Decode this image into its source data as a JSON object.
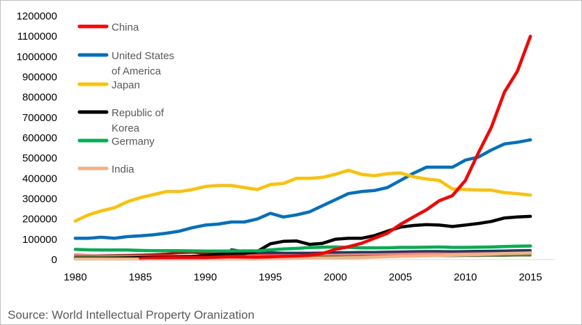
{
  "source": "Source: World Intellectual Property Oranization",
  "chart_data": {
    "type": "line",
    "title": "",
    "xlabel": "",
    "ylabel": "",
    "xlim": [
      1980,
      2015
    ],
    "ylim": [
      0,
      1200000
    ],
    "x": [
      1980,
      1981,
      1982,
      1983,
      1984,
      1985,
      1986,
      1987,
      1988,
      1989,
      1990,
      1991,
      1992,
      1993,
      1994,
      1995,
      1996,
      1997,
      1998,
      1999,
      2000,
      2001,
      2002,
      2003,
      2004,
      2005,
      2006,
      2007,
      2008,
      2009,
      2010,
      2011,
      2012,
      2013,
      2014,
      2015
    ],
    "x_ticks": [
      "1980",
      "1985",
      "1990",
      "1995",
      "2000",
      "2005",
      "2010",
      "2015"
    ],
    "x_tick_values": [
      1980,
      1985,
      1990,
      1995,
      2000,
      2005,
      2010,
      2015
    ],
    "y_ticks": [
      "0",
      "100000",
      "200000",
      "300000",
      "400000",
      "500000",
      "600000",
      "700000",
      "800000",
      "900000",
      "1000000",
      "1100000",
      "1200000"
    ],
    "y_tick_values": [
      0,
      100000,
      200000,
      300000,
      400000,
      500000,
      600000,
      700000,
      800000,
      900000,
      1000000,
      1100000,
      1200000
    ],
    "grid": false,
    "legend_position": "top-left",
    "legend": [
      {
        "lines": [
          "China"
        ],
        "color": "#ff0000"
      },
      {
        "lines": [
          "United States",
          "of America"
        ],
        "color": "#0070c0"
      },
      {
        "lines": [
          "Japan"
        ],
        "color": "#ffc000"
      },
      {
        "lines": [
          "Republic of",
          "Korea"
        ],
        "color": "#000000"
      },
      {
        "lines": [
          "Germany"
        ],
        "color": "#00b050"
      },
      {
        "lines": [
          "India"
        ],
        "color": "#f4b183"
      }
    ],
    "series": [
      {
        "name": "China",
        "color": "#ff0000",
        "values": [
          null,
          null,
          null,
          null,
          null,
          4000,
          8000,
          9000,
          10000,
          10000,
          10000,
          12000,
          14000,
          13000,
          12000,
          14000,
          16000,
          18000,
          21000,
          30000,
          50000,
          63000,
          80000,
          105000,
          130000,
          173000,
          210000,
          245000,
          290000,
          315000,
          390000,
          526000,
          652000,
          825000,
          928000,
          1100000
        ]
      },
      {
        "name": "United States of America",
        "color": "#0070c0",
        "values": [
          105000,
          105000,
          110000,
          105000,
          113000,
          117000,
          122000,
          130000,
          140000,
          157000,
          170000,
          175000,
          185000,
          185000,
          200000,
          228000,
          210000,
          220000,
          235000,
          265000,
          295000,
          325000,
          335000,
          340000,
          355000,
          390000,
          425000,
          455000,
          455000,
          455000,
          490000,
          505000,
          540000,
          570000,
          578000,
          590000
        ]
      },
      {
        "name": "Japan",
        "color": "#ffc000",
        "values": [
          190000,
          220000,
          240000,
          255000,
          285000,
          305000,
          320000,
          335000,
          335000,
          345000,
          360000,
          365000,
          365000,
          355000,
          345000,
          370000,
          375000,
          400000,
          400000,
          405000,
          420000,
          440000,
          420000,
          413000,
          423000,
          427000,
          408000,
          397000,
          390000,
          348000,
          345000,
          343000,
          342000,
          330000,
          325000,
          318000
        ]
      },
      {
        "name": "Republic of Korea",
        "color": "#000000",
        "values": [
          5000,
          5000,
          5000,
          6000,
          8000,
          10000,
          12000,
          13000,
          14000,
          15000,
          20000,
          25000,
          30000,
          30000,
          40000,
          78000,
          90000,
          92000,
          75000,
          80000,
          100000,
          105000,
          105000,
          118000,
          140000,
          160000,
          168000,
          172000,
          170000,
          163000,
          170000,
          178000,
          188000,
          205000,
          210000,
          213000
        ]
      },
      {
        "name": "Germany",
        "color": "#00b050",
        "values": [
          50000,
          48000,
          47000,
          47000,
          47000,
          45000,
          44000,
          44000,
          44000,
          43000,
          42000,
          42000,
          42000,
          43000,
          43000,
          48000,
          52000,
          55000,
          59000,
          61000,
          62000,
          60000,
          58000,
          58000,
          58000,
          60000,
          60000,
          61000,
          62000,
          60000,
          60000,
          61000,
          62000,
          64000,
          66000,
          67000
        ]
      },
      {
        "name": "India",
        "color": "#f4b183",
        "values": [
          3000,
          3000,
          3000,
          3000,
          3000,
          3000,
          3000,
          3000,
          3000,
          3000,
          3000,
          3000,
          3000,
          3000,
          3000,
          4000,
          4000,
          5000,
          6000,
          7000,
          8000,
          9000,
          10000,
          12000,
          14000,
          16000,
          17000,
          19000,
          20000,
          22000,
          24000,
          25000,
          27000,
          30000,
          31000,
          33000
        ]
      },
      {
        "name": "Gray series",
        "color": "#7f7f7f",
        "in_legend": false,
        "values": [
          12000,
          12000,
          12000,
          13000,
          13000,
          14000,
          15000,
          15000,
          16000,
          17000,
          18000,
          18000,
          19000,
          20000,
          20000,
          21000,
          22000,
          23000,
          24000,
          24000,
          25000,
          26000,
          26000,
          27000,
          27000,
          28000,
          28000,
          29000,
          30000,
          30000,
          31000,
          32000,
          33000,
          34000,
          35000,
          35000
        ]
      },
      {
        "name": "Dark red series",
        "color": "#c00000",
        "in_legend": false,
        "values": [
          20000,
          20000,
          21000,
          21000,
          22000,
          23000,
          25000,
          28000,
          33000,
          35000,
          30000,
          28000,
          27000,
          26000,
          25000,
          25000,
          26000,
          27000,
          28000,
          29000,
          30000,
          31000,
          32000,
          31000,
          32000,
          33000,
          34000,
          36000,
          36000,
          35000,
          35000,
          36000,
          38000,
          40000,
          40000,
          41000
        ]
      },
      {
        "name": "Light red series",
        "color": "#ff7c80",
        "in_legend": false,
        "values": [
          25000,
          22000,
          20000,
          18000,
          18000,
          17000,
          17000,
          17000,
          17000,
          17000,
          17000,
          17000,
          18000,
          19000,
          19000,
          20000,
          21000,
          22000,
          23000,
          24000,
          25000,
          26000,
          27000,
          28000,
          29000,
          30000,
          31000,
          32000,
          32000,
          31000,
          32000,
          33000,
          33000,
          34000,
          34000,
          35000
        ]
      },
      {
        "name": "Navy series",
        "color": "#1f3864",
        "in_legend": false,
        "values": [
          null,
          null,
          null,
          null,
          null,
          null,
          null,
          null,
          null,
          null,
          null,
          null,
          50000,
          40000,
          35000,
          35000,
          33000,
          33000,
          33000,
          34000,
          35000,
          36000,
          37000,
          37000,
          38000,
          39000,
          40000,
          41000,
          41000,
          40000,
          41000,
          42000,
          43000,
          44000,
          45000,
          46000
        ]
      },
      {
        "name": "Olive series",
        "color": "#548235",
        "in_legend": false,
        "values": [
          15000,
          15000,
          14000,
          14000,
          14000,
          14000,
          14000,
          13000,
          13000,
          13000,
          13000,
          13000,
          13000,
          13000,
          13000,
          13000,
          13000,
          13000,
          14000,
          14000,
          15000,
          15000,
          16000,
          16000,
          17000,
          17000,
          18000,
          18000,
          18000,
          18000,
          19000,
          19000,
          20000,
          20000,
          21000,
          21000
        ]
      }
    ]
  }
}
